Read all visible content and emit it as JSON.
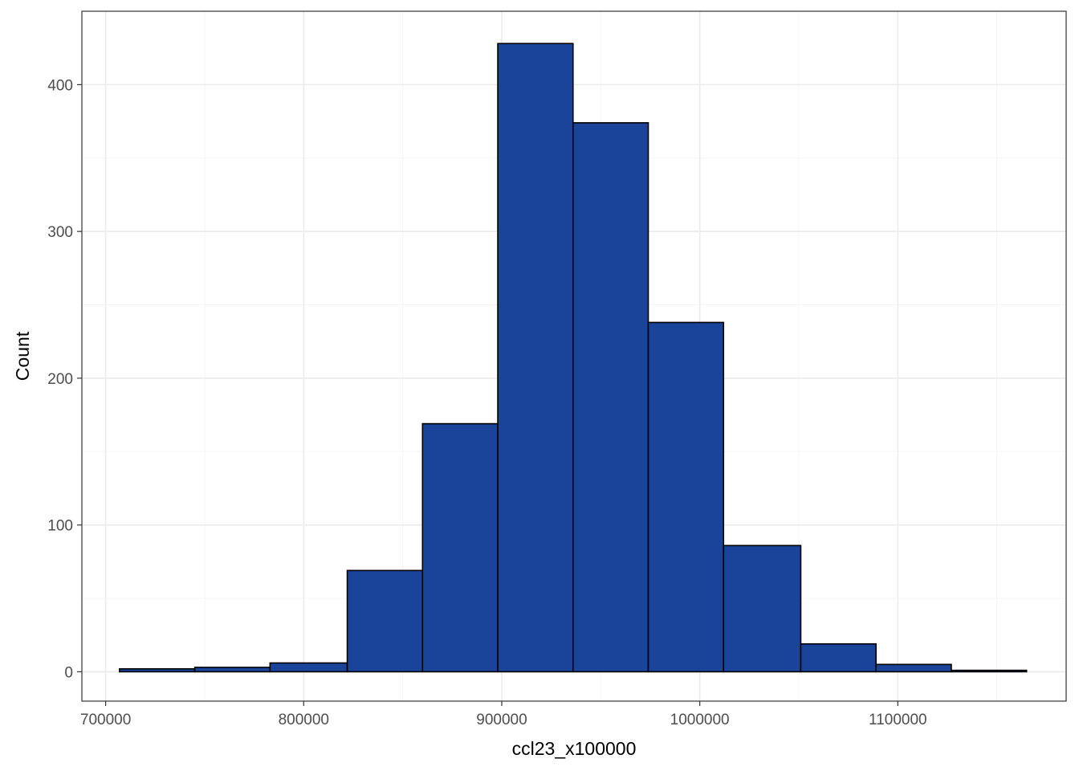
{
  "chart_data": {
    "type": "histogram",
    "xlabel": "ccl23_x100000",
    "ylabel": "Count",
    "xlim": [
      688000,
      1185000
    ],
    "ylim": [
      -20,
      450
    ],
    "x_ticks": [
      700000,
      800000,
      900000,
      1000000,
      1100000
    ],
    "x_tick_labels": [
      "700000",
      "800000",
      "900000",
      "1000000",
      "1100000"
    ],
    "y_ticks": [
      0,
      100,
      200,
      300,
      400
    ],
    "y_tick_labels": [
      "0",
      "100",
      "200",
      "300",
      "400"
    ],
    "x_minor_ticks": [
      750000,
      850000,
      950000,
      1050000,
      1150000
    ],
    "y_minor_ticks": [
      50,
      150,
      250,
      350
    ],
    "grid": true,
    "bins": [
      {
        "x0": 707000,
        "x1": 745000,
        "count": 2
      },
      {
        "x0": 745000,
        "x1": 783000,
        "count": 3
      },
      {
        "x0": 783000,
        "x1": 822000,
        "count": 6
      },
      {
        "x0": 822000,
        "x1": 860000,
        "count": 69
      },
      {
        "x0": 860000,
        "x1": 898000,
        "count": 169
      },
      {
        "x0": 898000,
        "x1": 936000,
        "count": 428
      },
      {
        "x0": 936000,
        "x1": 974000,
        "count": 374
      },
      {
        "x0": 974000,
        "x1": 1012000,
        "count": 238
      },
      {
        "x0": 1012000,
        "x1": 1051000,
        "count": 86
      },
      {
        "x0": 1051000,
        "x1": 1089000,
        "count": 19
      },
      {
        "x0": 1089000,
        "x1": 1127000,
        "count": 5
      },
      {
        "x0": 1127000,
        "x1": 1165000,
        "count": 1
      }
    ],
    "colors": {
      "bar_fill": "#1a4499",
      "bar_stroke": "#000000",
      "grid_major": "#ebebeb",
      "grid_minor": "#f5f5f5",
      "panel_border": "#333333",
      "tick_text": "#4d4d4d"
    }
  }
}
